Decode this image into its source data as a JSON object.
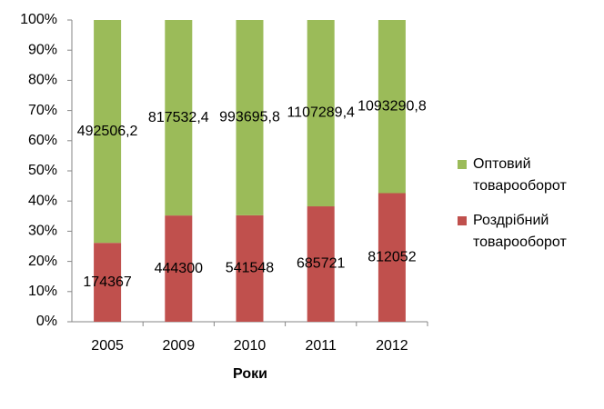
{
  "chart_data": {
    "type": "bar",
    "stack": "percent",
    "x_label": "Роки",
    "categories": [
      "2005",
      "2009",
      "2010",
      "2011",
      "2012"
    ],
    "series": [
      {
        "name": "Роздрібний товарооборот",
        "color": "#c0504d",
        "values": [
          174367,
          444300,
          541548,
          685721,
          812052
        ]
      },
      {
        "name": "Оптовий товарооборот",
        "color": "#9bbb59",
        "values": [
          492506.2,
          817532.4,
          993695.8,
          1107289.4,
          1093290.8
        ],
        "value_labels": [
          "492506,2",
          "817532,4",
          "993695,8",
          "1107289,4",
          "1093290,8"
        ]
      }
    ],
    "ylim": [
      0,
      100
    ],
    "yticks": [
      {
        "value": 0,
        "label": "0%"
      },
      {
        "value": 10,
        "label": "10%"
      },
      {
        "value": 20,
        "label": "20%"
      },
      {
        "value": 30,
        "label": "30%"
      },
      {
        "value": 40,
        "label": "40%"
      },
      {
        "value": 50,
        "label": "50%"
      },
      {
        "value": 60,
        "label": "60%"
      },
      {
        "value": 70,
        "label": "70%"
      },
      {
        "value": 80,
        "label": "80%"
      },
      {
        "value": 90,
        "label": "90%"
      },
      {
        "value": 100,
        "label": "100%"
      }
    ],
    "legend": "right"
  }
}
